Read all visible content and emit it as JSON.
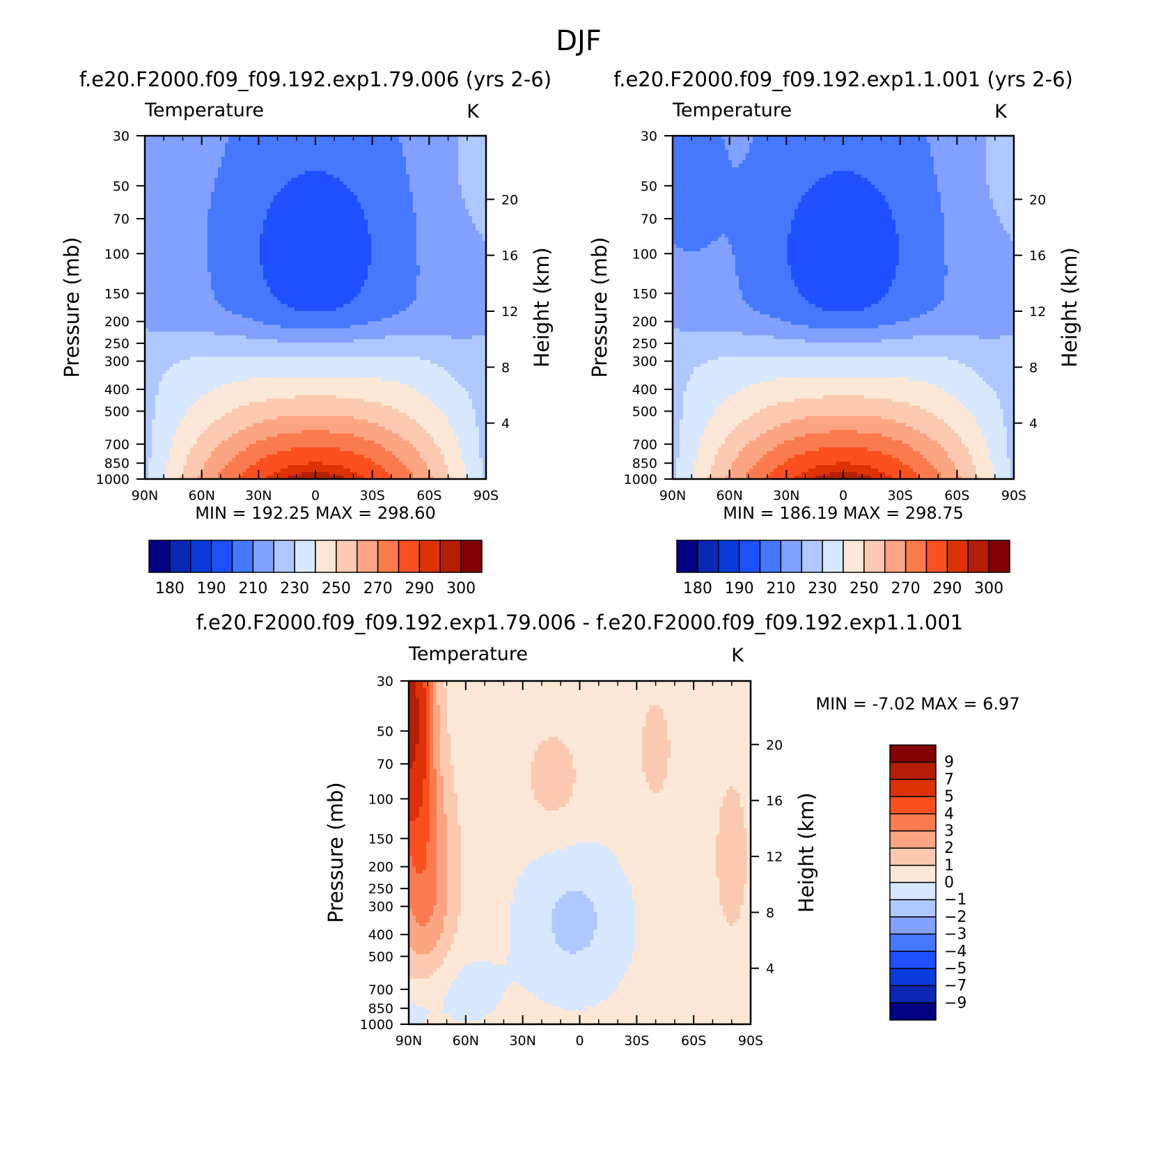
{
  "page_title": "DJF",
  "colors": {
    "abs_palette": [
      "#000080",
      "#0a28b4",
      "#0a3cdc",
      "#1e50ff",
      "#4678ff",
      "#82a0ff",
      "#afc8ff",
      "#d7e8ff",
      "#fde8d7",
      "#fccab0",
      "#fca582",
      "#fa7b4e",
      "#fa501e",
      "#dc3205",
      "#b41e05",
      "#820000"
    ],
    "diff_palette": [
      "#000080",
      "#0a28b4",
      "#0a3cdc",
      "#1e50ff",
      "#4678ff",
      "#82a0ff",
      "#afc8ff",
      "#d7e8ff",
      "#fde8d7",
      "#fccab0",
      "#fca582",
      "#fa7b4e",
      "#fa501e",
      "#dc3205",
      "#b41e05",
      "#820000"
    ]
  },
  "chart_data": [
    {
      "type": "heatmap",
      "title": "f.e20.F2000.f09_f09.192.exp1.79.006 (yrs 2-6)",
      "subtitle_left": "Temperature",
      "subtitle_right": "K",
      "xlabel": "",
      "ylabel": "Pressure (mb)",
      "ylabel_right": "Height (km)",
      "x_ticks": [
        "90N",
        "60N",
        "30N",
        "0",
        "30S",
        "60S",
        "90S"
      ],
      "x_range": [
        90,
        -90
      ],
      "y_ticks": [
        30,
        50,
        70,
        100,
        150,
        200,
        250,
        300,
        400,
        500,
        700,
        850,
        1000
      ],
      "y_range": [
        30,
        1000
      ],
      "y_scale": "log",
      "y_right_ticks": [
        20,
        16,
        12,
        8,
        4
      ],
      "min_label": "MIN = 192.25",
      "max_label": "MAX = 298.60",
      "min": 192.25,
      "max": 298.6,
      "levels": [
        180,
        185,
        190,
        200,
        210,
        220,
        230,
        240,
        250,
        260,
        270,
        280,
        290,
        295,
        300
      ],
      "colorbar_labels": [
        "180",
        "190",
        "210",
        "230",
        "250",
        "270",
        "290",
        "300"
      ],
      "field": "T_abs_A"
    },
    {
      "type": "heatmap",
      "title": "f.e20.F2000.f09_f09.192.exp1.1.001 (yrs 2-6)",
      "subtitle_left": "Temperature",
      "subtitle_right": "K",
      "xlabel": "",
      "ylabel": "Pressure (mb)",
      "ylabel_right": "Height (km)",
      "x_ticks": [
        "90N",
        "60N",
        "30N",
        "0",
        "30S",
        "60S",
        "90S"
      ],
      "x_range": [
        90,
        -90
      ],
      "y_ticks": [
        30,
        50,
        70,
        100,
        150,
        200,
        250,
        300,
        400,
        500,
        700,
        850,
        1000
      ],
      "y_range": [
        30,
        1000
      ],
      "y_scale": "log",
      "y_right_ticks": [
        20,
        16,
        12,
        8,
        4
      ],
      "min_label": "MIN = 186.19",
      "max_label": "MAX = 298.75",
      "min": 186.19,
      "max": 298.75,
      "levels": [
        180,
        185,
        190,
        200,
        210,
        220,
        230,
        240,
        250,
        260,
        270,
        280,
        290,
        295,
        300
      ],
      "colorbar_labels": [
        "180",
        "190",
        "210",
        "230",
        "250",
        "270",
        "290",
        "300"
      ],
      "field": "T_abs_B"
    },
    {
      "type": "heatmap",
      "title": "f.e20.F2000.f09_f09.192.exp1.79.006 - f.e20.F2000.f09_f09.192.exp1.1.001",
      "subtitle_left": "Temperature",
      "subtitle_right": "K",
      "xlabel": "",
      "ylabel": "Pressure (mb)",
      "ylabel_right": "Height (km)",
      "x_ticks": [
        "90N",
        "60N",
        "30N",
        "0",
        "30S",
        "60S",
        "90S"
      ],
      "x_range": [
        90,
        -90
      ],
      "y_ticks": [
        30,
        50,
        70,
        100,
        150,
        200,
        250,
        300,
        400,
        500,
        700,
        850,
        1000
      ],
      "y_range": [
        30,
        1000
      ],
      "y_scale": "log",
      "y_right_ticks": [
        20,
        16,
        12,
        8,
        4
      ],
      "min_label": "MIN = -7.02",
      "max_label": "MAX = 6.97",
      "min": -7.02,
      "max": 6.97,
      "levels": [
        -9,
        -7,
        -5,
        -4,
        -3,
        -2,
        -1,
        0,
        1,
        2,
        3,
        4,
        5,
        7,
        9
      ],
      "colorbar_labels": [
        "9",
        "7",
        "5",
        "4",
        "3",
        "2",
        "1",
        "0",
        "−1",
        "−2",
        "−3",
        "−4",
        "−5",
        "−7",
        "−9"
      ],
      "field": "T_diff"
    }
  ]
}
